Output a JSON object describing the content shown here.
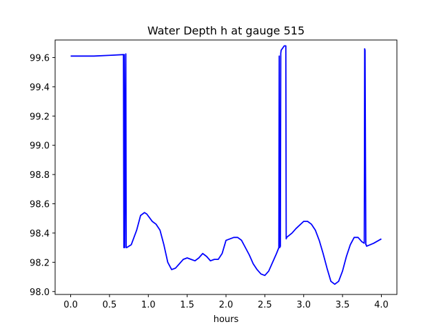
{
  "chart_data": {
    "type": "line",
    "title": "Water Depth h at gauge 515",
    "xlabel": "hours",
    "ylabel": "",
    "xlim": [
      -0.2,
      4.2
    ],
    "ylim": [
      97.98,
      99.72
    ],
    "grid": false,
    "xticks": [
      "0.0",
      "0.5",
      "1.0",
      "1.5",
      "2.0",
      "2.5",
      "3.0",
      "3.5",
      "4.0"
    ],
    "yticks": [
      "98.0",
      "98.2",
      "98.4",
      "98.6",
      "98.8",
      "99.0",
      "99.2",
      "99.4",
      "99.6"
    ],
    "series": [
      {
        "color": "#0000ff",
        "x": [
          0.0,
          0.3,
          0.5,
          0.68,
          0.685,
          0.69,
          0.695,
          0.71,
          0.715,
          0.72,
          0.78,
          0.85,
          0.9,
          0.95,
          0.98,
          1.05,
          1.1,
          1.15,
          1.2,
          1.25,
          1.3,
          1.35,
          1.4,
          1.45,
          1.5,
          1.55,
          1.6,
          1.65,
          1.7,
          1.75,
          1.8,
          1.85,
          1.9,
          1.95,
          2.0,
          2.05,
          2.1,
          2.15,
          2.2,
          2.25,
          2.3,
          2.35,
          2.4,
          2.45,
          2.5,
          2.55,
          2.6,
          2.65,
          2.68,
          2.685,
          2.69,
          2.7,
          2.705,
          2.71,
          2.75,
          2.77,
          2.775,
          2.78,
          2.85,
          2.9,
          3.0,
          3.05,
          3.1,
          3.15,
          3.2,
          3.25,
          3.3,
          3.35,
          3.4,
          3.45,
          3.5,
          3.55,
          3.6,
          3.65,
          3.7,
          3.75,
          3.78,
          3.785,
          3.79,
          3.8,
          3.805,
          3.81,
          3.9,
          4.0
        ],
        "y": [
          99.61,
          99.61,
          99.615,
          99.62,
          98.3,
          99.62,
          98.3,
          99.625,
          98.3,
          98.3,
          98.32,
          98.42,
          98.52,
          98.54,
          98.53,
          98.48,
          98.46,
          98.42,
          98.32,
          98.2,
          98.15,
          98.16,
          98.19,
          98.22,
          98.23,
          98.22,
          98.21,
          98.23,
          98.26,
          98.24,
          98.21,
          98.22,
          98.22,
          98.26,
          98.35,
          98.36,
          98.37,
          98.37,
          98.35,
          98.3,
          98.25,
          98.19,
          98.15,
          98.12,
          98.11,
          98.14,
          98.2,
          98.26,
          98.3,
          99.61,
          98.3,
          98.31,
          99.63,
          99.65,
          99.68,
          99.68,
          98.36,
          98.37,
          98.4,
          98.43,
          98.48,
          98.48,
          98.46,
          98.42,
          98.35,
          98.26,
          98.16,
          98.07,
          98.05,
          98.07,
          98.14,
          98.24,
          98.32,
          98.37,
          98.37,
          98.34,
          98.33,
          99.66,
          99.65,
          98.32,
          98.32,
          98.31,
          98.33,
          98.36
        ]
      }
    ]
  }
}
